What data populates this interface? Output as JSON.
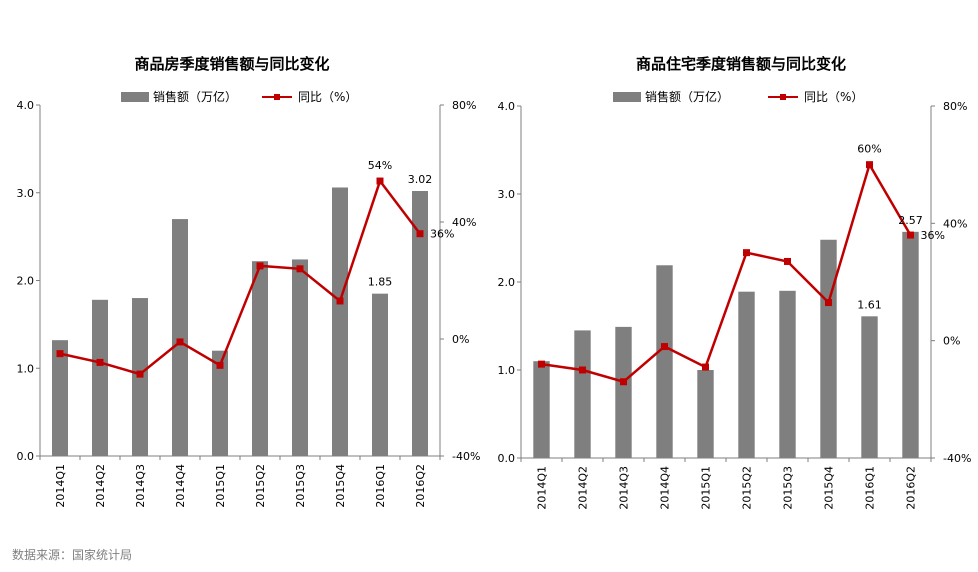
{
  "source": "数据来源：国家统计局",
  "chart_data": [
    {
      "type": "bar",
      "title": "商品房季度销售额与同比变化",
      "categories": [
        "2014Q1",
        "2014Q2",
        "2014Q3",
        "2014Q4",
        "2015Q1",
        "2015Q2",
        "2015Q3",
        "2015Q4",
        "2016Q1",
        "2016Q2"
      ],
      "series": [
        {
          "name": "销售额（万亿）",
          "type": "bar",
          "axis": "left",
          "color": "#7f7f7f",
          "values": [
            1.32,
            1.78,
            1.8,
            2.7,
            1.2,
            2.22,
            2.24,
            3.06,
            1.85,
            3.02
          ]
        },
        {
          "name": "同比（%）",
          "type": "line",
          "axis": "right",
          "color": "#c00000",
          "values": [
            -5,
            -8,
            -12,
            -1,
            -9,
            25,
            24,
            13,
            54,
            36
          ]
        }
      ],
      "left_axis": {
        "min": 0,
        "max": 4,
        "ticks": [
          "0.0",
          "1.0",
          "2.0",
          "3.0",
          "4.0"
        ]
      },
      "right_axis": {
        "min": -40,
        "max": 80,
        "ticks": [
          "-40%",
          "0%",
          "40%",
          "80%"
        ]
      },
      "data_labels": [
        {
          "series": 0,
          "index": 8,
          "text": "1.85"
        },
        {
          "series": 0,
          "index": 9,
          "text": "3.02"
        },
        {
          "series": 1,
          "index": 8,
          "text": "54%"
        },
        {
          "series": 1,
          "index": 9,
          "text": "36%"
        }
      ],
      "legend": "top"
    },
    {
      "type": "bar",
      "title": "商品住宅季度销售额与同比变化",
      "categories": [
        "2014Q1",
        "2014Q2",
        "2014Q3",
        "2014Q4",
        "2015Q1",
        "2015Q2",
        "2015Q3",
        "2015Q4",
        "2016Q1",
        "2016Q2"
      ],
      "series": [
        {
          "name": "销售额（万亿）",
          "type": "bar",
          "axis": "left",
          "color": "#7f7f7f",
          "values": [
            1.1,
            1.45,
            1.49,
            2.19,
            1.0,
            1.89,
            1.9,
            2.48,
            1.61,
            2.57
          ]
        },
        {
          "name": "同比（%）",
          "type": "line",
          "axis": "right",
          "color": "#c00000",
          "values": [
            -8,
            -10,
            -14,
            -2,
            -9,
            30,
            27,
            13,
            60,
            36
          ]
        }
      ],
      "left_axis": {
        "min": 0,
        "max": 4,
        "ticks": [
          "0.0",
          "1.0",
          "2.0",
          "3.0",
          "4.0"
        ]
      },
      "right_axis": {
        "min": -40,
        "max": 80,
        "ticks": [
          "-40%",
          "0%",
          "40%",
          "80%"
        ]
      },
      "data_labels": [
        {
          "series": 0,
          "index": 8,
          "text": "1.61"
        },
        {
          "series": 0,
          "index": 9,
          "text": "2.57"
        },
        {
          "series": 1,
          "index": 8,
          "text": "60%"
        },
        {
          "series": 1,
          "index": 9,
          "text": "36%"
        }
      ],
      "legend": "top"
    }
  ]
}
